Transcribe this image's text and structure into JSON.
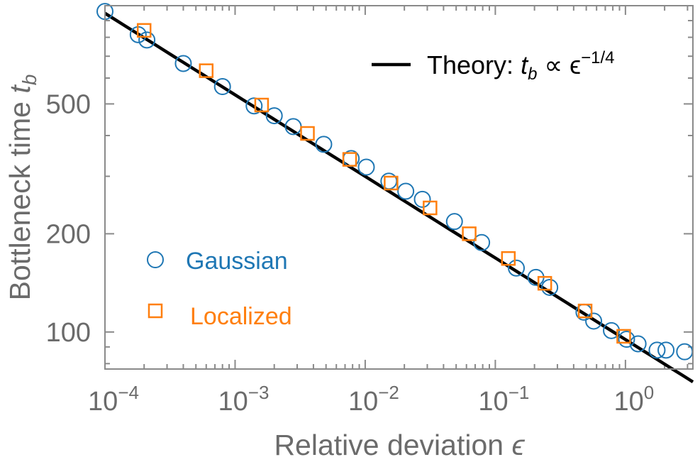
{
  "chart_data": {
    "type": "scatter",
    "xlabel": "Relative deviation",
    "xlabel_symbol": "ϵ",
    "ylabel": "Bottleneck time",
    "ylabel_symbol": "t",
    "ylabel_subscript": "b",
    "x_scale": "log",
    "y_scale": "log",
    "xlim": [
      0.0001,
      3.3
    ],
    "ylim": [
      77,
      1000
    ],
    "grid": false,
    "frame": true,
    "legend_placement": "left-middle",
    "x_ticks": [
      {
        "value": 0.0001,
        "base": "10",
        "exp": "−4"
      },
      {
        "value": 0.001,
        "base": "10",
        "exp": "−3"
      },
      {
        "value": 0.01,
        "base": "10",
        "exp": "−2"
      },
      {
        "value": 0.1,
        "base": "10",
        "exp": "−1"
      },
      {
        "value": 1,
        "base": "10",
        "exp": "0"
      }
    ],
    "y_ticks": [
      {
        "value": 100,
        "label": "100"
      },
      {
        "value": 200,
        "label": "200"
      },
      {
        "value": 500,
        "label": "500"
      }
    ],
    "theory": {
      "name_prefix": "Theory:",
      "formula_var": "t",
      "formula_sub": "b",
      "formula_mid": "∝ ϵ",
      "formula_exp": "−1/4",
      "coefficient": 94.8,
      "exponent": -0.25,
      "color": "#000000"
    },
    "series": [
      {
        "name": "Gaussian",
        "marker": "circle",
        "color": "#1f77b4",
        "x": [
          0.0001,
          0.00018,
          0.00021,
          0.0004,
          0.0008,
          0.0014,
          0.002,
          0.0028,
          0.0048,
          0.0078,
          0.0102,
          0.0152,
          0.0205,
          0.0275,
          0.0485,
          0.0785,
          0.145,
          0.205,
          0.262,
          0.48,
          0.57,
          0.78,
          1.02,
          1.25,
          1.75,
          2.05,
          2.85
        ],
        "y": [
          960,
          815,
          785,
          665,
          565,
          493,
          460,
          426,
          376,
          340,
          320,
          290,
          270,
          255,
          218,
          188,
          157,
          147,
          137,
          115,
          108,
          101,
          95,
          92,
          88,
          88,
          87
        ]
      },
      {
        "name": "Localized",
        "marker": "square",
        "color": "#ff7f0e",
        "x": [
          0.0002,
          0.0006,
          0.0016,
          0.0036,
          0.0076,
          0.0158,
          0.0315,
          0.063,
          0.126,
          0.24,
          0.49,
          0.97
        ],
        "y": [
          840,
          632,
          496,
          406,
          338,
          286,
          240,
          200,
          168,
          141,
          116,
          97
        ]
      }
    ]
  }
}
